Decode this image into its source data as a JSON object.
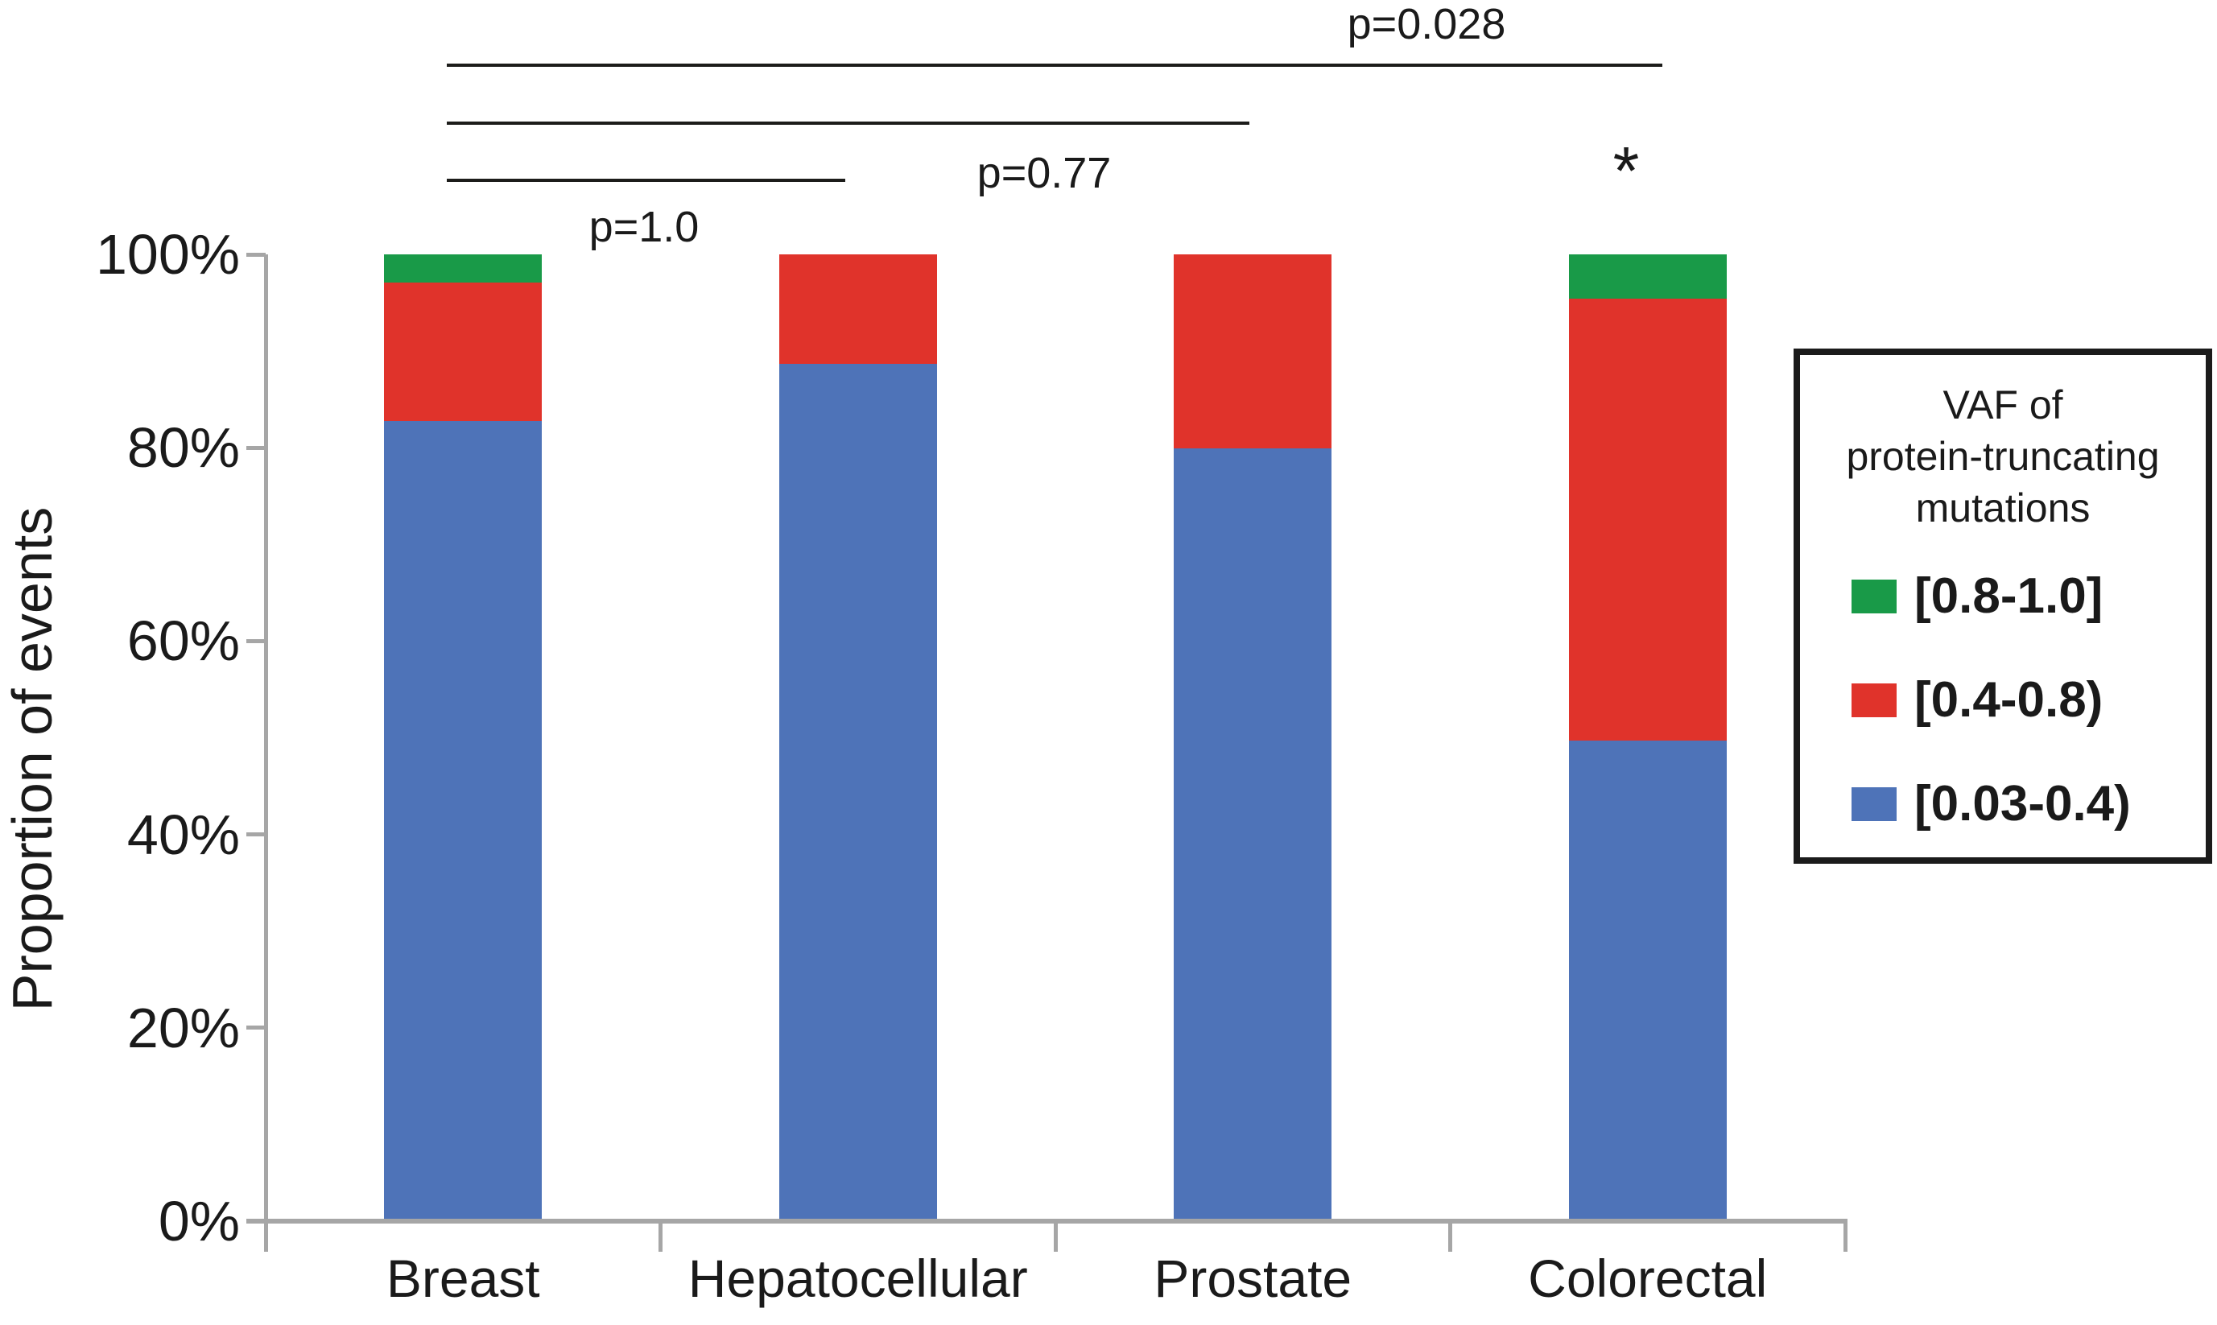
{
  "page": {
    "background": "#FFFFFF"
  },
  "chart_data": {
    "type": "stacked_bar",
    "units": "percent",
    "categories": [
      "Breast",
      "Hepatocellular",
      "Prostate",
      "Colorectal"
    ],
    "series": [
      {
        "name": "[0.03-0.4)",
        "color": "#4E73B8",
        "values": [
          82.8,
          88.7,
          79.9,
          49.7
        ]
      },
      {
        "name": "[0.4-0.8)",
        "color": "#E0332B",
        "values": [
          14.3,
          11.3,
          20.1,
          45.7
        ]
      },
      {
        "name": "[0.8-1.0]",
        "color": "#199A48",
        "values": [
          2.9,
          0,
          0,
          4.6
        ]
      }
    ],
    "stack_order": "bottom-to-top",
    "ylabel": "Proportion of events",
    "xlabel": "",
    "ylim": [
      0,
      100
    ],
    "y_ticks": [
      "0%",
      "20%",
      "40%",
      "60%",
      "80%",
      "100%"
    ],
    "grid": false,
    "axis_color": "#A6A6A6",
    "annotation_color": "#1C1C1A",
    "legend": {
      "position": "right",
      "title_lines": [
        "VAF of",
        "protein-truncating",
        "mutations"
      ],
      "items": [
        {
          "label": "[0.8-1.0]",
          "color": "#199A48"
        },
        {
          "label": "[0.4-0.8)",
          "color": "#E0332B"
        },
        {
          "label": "[0.03-0.4)",
          "color": "#4E73B8"
        }
      ]
    },
    "annotations": {
      "comparisons": [
        {
          "label": "p=1.0",
          "between": [
            "Breast",
            "Hepatocellular"
          ],
          "line": {
            "x1": 555,
            "x2": 1050,
            "y": 224
          },
          "label_pos": {
            "x": 800,
            "y": 282
          }
        },
        {
          "label": "p=0.77",
          "between": [
            "Breast",
            "Prostate"
          ],
          "line": {
            "x1": 555,
            "x2": 1552,
            "y": 153
          },
          "label_pos": {
            "x": 1297,
            "y": 215
          }
        },
        {
          "label": "p=0.028",
          "between": [
            "Breast",
            "Colorectal"
          ],
          "line": {
            "x1": 555,
            "x2": 2065,
            "y": 81
          },
          "label_pos": {
            "x": 1772,
            "y": 30
          }
        }
      ],
      "star": {
        "symbol": "*",
        "category": "Colorectal",
        "pos": {
          "x": 2020,
          "y": 170
        }
      }
    }
  }
}
